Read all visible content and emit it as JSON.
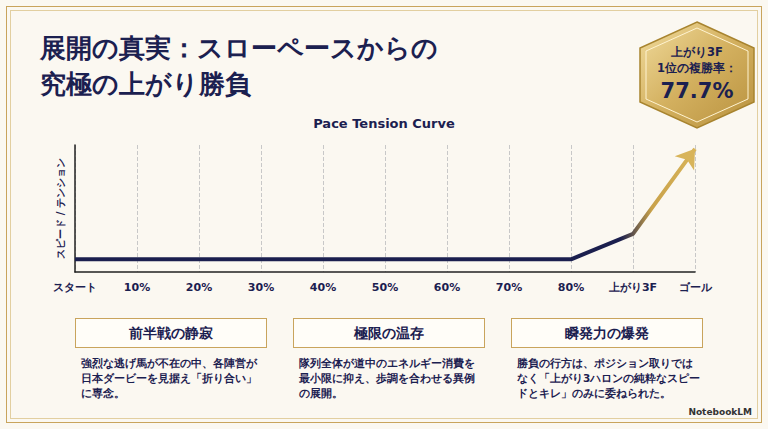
{
  "chart_data": {
    "type": "line",
    "title": "Pace Tension Curve",
    "y_label": "スピード / テンション",
    "x": [
      0,
      80,
      90,
      100
    ],
    "values": [
      10,
      10,
      30,
      97
    ],
    "color": "#1b1f4e",
    "xlim": [
      0,
      100
    ],
    "xticks": [
      {
        "value": 0,
        "label": "スタート"
      },
      {
        "value": 10,
        "label": "10%"
      },
      {
        "value": 20,
        "label": "20%"
      },
      {
        "value": 30,
        "label": "30%"
      },
      {
        "value": 40,
        "label": "40%"
      },
      {
        "value": 50,
        "label": "50%"
      },
      {
        "value": 60,
        "label": "60%"
      },
      {
        "value": 70,
        "label": "70%"
      },
      {
        "value": 80,
        "label": "80%"
      },
      {
        "value": 90,
        "label": "上がり3F"
      },
      {
        "value": 100,
        "label": "ゴール"
      }
    ],
    "ylim": [
      0,
      100
    ],
    "tick_labels": "x",
    "grid": true
  },
  "slide": {
    "title_lines": [
      "展開の真実：スローペースからの",
      "究極の上がり勝負"
    ],
    "badge": {
      "label_lines": [
        "上がり3F",
        "1位の複勝率："
      ],
      "value": "77.7%"
    },
    "cards": [
      {
        "heading": "前半戦の静寂",
        "body": "強烈な逃げ馬が不在の中、各陣営が日本ダービーを見据え「折り合い」に専念。"
      },
      {
        "heading": "極限の温存",
        "body": "隊列全体が道中のエネルギー消費を最小限に抑え、歩調を合わせる異例の展開。"
      },
      {
        "heading": "瞬発力の爆発",
        "body": "勝負の行方は、ポジション取りではなく「上がり3ハロンの純粋なスピードとキレ」のみに委ねられた。"
      }
    ],
    "footer": "NotebookLM"
  }
}
